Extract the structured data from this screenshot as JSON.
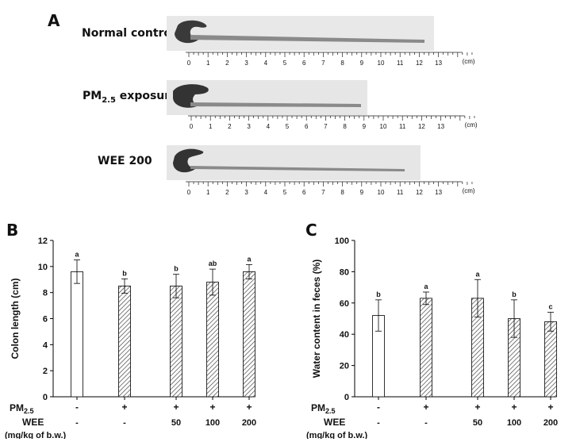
{
  "figure": {
    "panel_a": "A",
    "panel_b": "B",
    "panel_c": "C",
    "rows": [
      {
        "label_main": "Normal control",
        "label_sub": "",
        "label_tail": "",
        "colon_length_cm": 12.4
      },
      {
        "label_main": "PM",
        "label_sub": "2.5",
        "label_tail": " exposure",
        "colon_length_cm": 8.9
      },
      {
        "label_main": "WEE 200",
        "label_sub": "",
        "label_tail": "",
        "colon_length_cm": 11.5
      }
    ],
    "ruler_ticks": [
      "0",
      "1",
      "2",
      "3",
      "4",
      "5",
      "6",
      "7",
      "8",
      "9",
      "10",
      "11",
      "12",
      "13"
    ],
    "ruler_unit": "(cm)"
  },
  "treatment_table": {
    "pm_label": "PM",
    "pm_sub": "2.5",
    "wee_label": "WEE",
    "unit_label": "(mg/kg of b.w.)",
    "pm_values": [
      "-",
      "+",
      "+",
      "+",
      "+"
    ],
    "wee_values": [
      "-",
      "-",
      "50",
      "100",
      "200"
    ]
  },
  "colors": {
    "bar_fill_control": "#ffffff",
    "bar_stroke": "#000000",
    "hatch": "#444444"
  },
  "chart_data": [
    {
      "type": "bar",
      "title": "",
      "xlabel": "",
      "ylabel": "Colon length (cm)",
      "ylim": [
        0,
        12
      ],
      "yticks": [
        "0",
        "2",
        "4",
        "6",
        "8",
        "10",
        "12"
      ],
      "categories": [
        "1",
        "2",
        "3",
        "4",
        "5"
      ],
      "values": [
        9.6,
        8.5,
        8.5,
        8.8,
        9.6
      ],
      "errors": [
        0.9,
        0.55,
        0.9,
        1.0,
        0.55
      ],
      "letters": [
        "a",
        "b",
        "b",
        "ab",
        "a"
      ],
      "hatched": [
        false,
        true,
        true,
        true,
        true
      ]
    },
    {
      "type": "bar",
      "title": "",
      "xlabel": "",
      "ylabel": "Water content in feces (%)",
      "ylim": [
        0,
        100
      ],
      "yticks": [
        "0",
        "20",
        "40",
        "60",
        "80",
        "100"
      ],
      "categories": [
        "1",
        "2",
        "3",
        "4",
        "5"
      ],
      "values": [
        52,
        63,
        63,
        50,
        48
      ],
      "errors": [
        10,
        4,
        12,
        12,
        6
      ],
      "letters": [
        "b",
        "a",
        "a",
        "b",
        "c"
      ],
      "hatched": [
        false,
        true,
        true,
        true,
        true
      ]
    }
  ]
}
